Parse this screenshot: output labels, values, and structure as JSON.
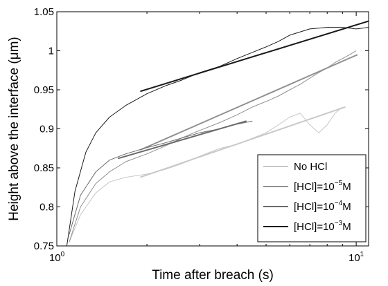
{
  "chart_data": {
    "type": "line",
    "title": "",
    "xlabel": "Time after breach (s)",
    "ylabel": "Height above the interface (μm)",
    "xscale": "log",
    "xlim": [
      1,
      11
    ],
    "ylim": [
      0.75,
      1.05
    ],
    "x_ticks": [
      1,
      10
    ],
    "x_tick_labels": [
      {
        "base": "10",
        "exp": "0"
      },
      {
        "base": "10",
        "exp": "1"
      }
    ],
    "y_ticks": [
      0.75,
      0.8,
      0.85,
      0.9,
      0.95,
      1,
      1.05
    ],
    "y_tick_labels": [
      "0.75",
      "0.8",
      "0.85",
      "0.9",
      "0.95",
      "1",
      "1.05"
    ],
    "grid": false,
    "legend_position": "bottom-right",
    "series": [
      {
        "name": "No HCl",
        "legend_parts": [
          {
            "t": "No HCl"
          }
        ],
        "color": "#c8c8c8",
        "data": {
          "x": [
            1.1,
            1.2,
            1.35,
            1.5,
            1.7,
            2.0,
            2.3,
            2.6,
            3.0,
            3.5,
            4.0,
            4.5,
            5.0,
            5.5,
            6.0,
            6.5,
            7.0,
            7.5,
            8.0,
            8.5,
            9.0
          ],
          "y": [
            0.755,
            0.79,
            0.818,
            0.832,
            0.838,
            0.842,
            0.848,
            0.855,
            0.865,
            0.875,
            0.88,
            0.888,
            0.895,
            0.905,
            0.915,
            0.92,
            0.905,
            0.895,
            0.905,
            0.92,
            0.928
          ]
        },
        "fit": {
          "x": [
            1.9,
            9.2
          ],
          "y": [
            0.838,
            0.928
          ]
        }
      },
      {
        "name": "[HCl]=10^-5M",
        "legend_parts": [
          {
            "t": "[HCl]=10"
          },
          {
            "sup": "−5"
          },
          {
            "t": "M"
          }
        ],
        "color": "#909090",
        "data": {
          "x": [
            1.1,
            1.2,
            1.35,
            1.5,
            1.7,
            2.0,
            2.3,
            2.6,
            3.0,
            3.5,
            4.0,
            4.5,
            5.0,
            5.5,
            6.0,
            6.5,
            7.0,
            7.5,
            8.0,
            8.5,
            9.0,
            9.5,
            10.0
          ],
          "y": [
            0.755,
            0.8,
            0.83,
            0.845,
            0.858,
            0.868,
            0.878,
            0.888,
            0.898,
            0.908,
            0.918,
            0.928,
            0.935,
            0.942,
            0.95,
            0.957,
            0.965,
            0.972,
            0.978,
            0.985,
            0.99,
            0.995,
            1.0
          ]
        },
        "fit": {
          "x": [
            1.9,
            10.1
          ],
          "y": [
            0.873,
            0.995
          ]
        }
      },
      {
        "name": "[HCl]=10^-4M",
        "legend_parts": [
          {
            "t": "[HCl]=10"
          },
          {
            "sup": "−4"
          },
          {
            "t": "M"
          }
        ],
        "color": "#6a6a6a",
        "data": {
          "x": [
            1.1,
            1.2,
            1.35,
            1.5,
            1.7,
            2.0,
            2.3,
            2.6,
            3.0,
            3.5,
            4.0,
            4.5
          ],
          "y": [
            0.765,
            0.815,
            0.845,
            0.86,
            0.868,
            0.876,
            0.882,
            0.888,
            0.895,
            0.9,
            0.906,
            0.91
          ]
        },
        "fit": {
          "x": [
            1.6,
            4.3
          ],
          "y": [
            0.862,
            0.91
          ]
        }
      },
      {
        "name": "[HCl]=10^-3M",
        "legend_parts": [
          {
            "t": "[HCl]=10"
          },
          {
            "sup": "−3"
          },
          {
            "t": "M"
          }
        ],
        "color": "#1a1a1a",
        "data": {
          "x": [
            1.08,
            1.15,
            1.25,
            1.35,
            1.5,
            1.7,
            2.0,
            2.3,
            2.6,
            3.0,
            3.5,
            4.0,
            4.5,
            5.0,
            5.5,
            6.0,
            7.0,
            8.0,
            9.0,
            10.0,
            11.0
          ],
          "y": [
            0.75,
            0.82,
            0.87,
            0.895,
            0.915,
            0.93,
            0.945,
            0.955,
            0.962,
            0.972,
            0.98,
            0.99,
            0.998,
            1.005,
            1.012,
            1.02,
            1.028,
            1.03,
            1.03,
            1.028,
            1.03
          ]
        },
        "fit": {
          "x": [
            1.9,
            11.0
          ],
          "y": [
            0.948,
            1.038
          ]
        }
      }
    ]
  }
}
